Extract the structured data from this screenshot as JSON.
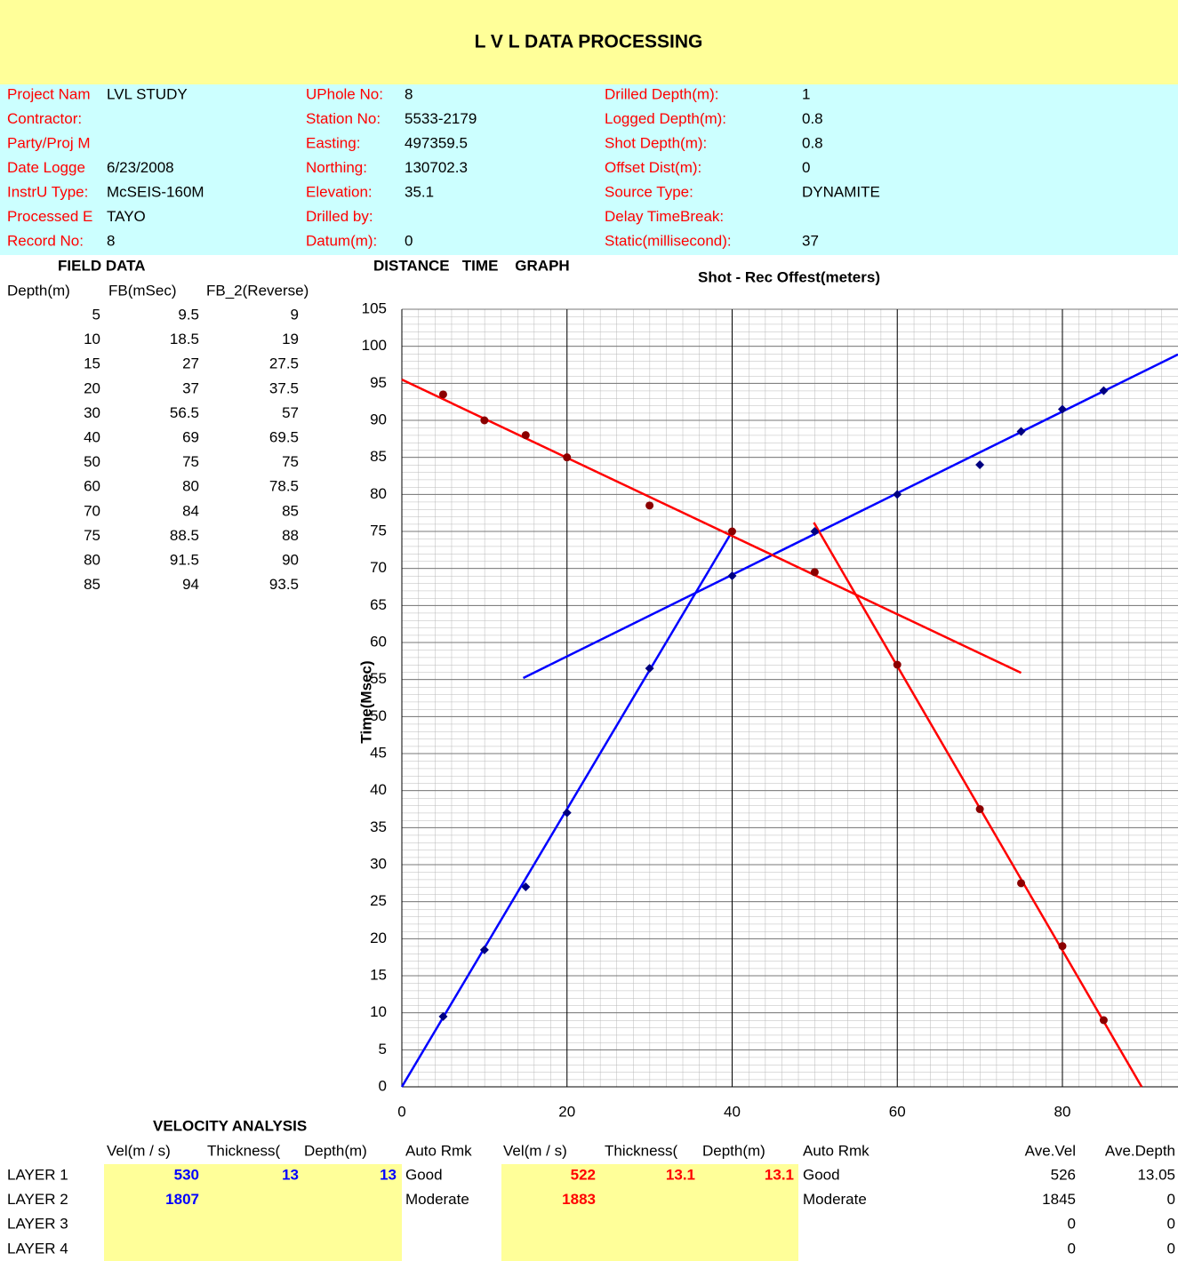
{
  "header": {
    "title": "L V L DATA PROCESSING"
  },
  "info": [
    [
      {
        "label": "Project Nam",
        "value": "LVL STUDY"
      },
      {
        "label": "Contractor:"
      },
      {
        "label": "Party/Proj M"
      },
      {
        "label": "Date Logge",
        "value": "6/23/2008"
      },
      {
        "label": "InstrU Type:",
        "value": "McSEIS-160M"
      },
      {
        "label": "Processed E",
        "value": "TAYO"
      },
      {
        "label": "Record No:",
        "value": "8"
      }
    ],
    [
      {
        "label": "UPhole No:",
        "value": "8"
      },
      {
        "label": "Station No:",
        "value": "5533-2179"
      },
      {
        "label": "Easting:",
        "value": "497359.5"
      },
      {
        "label": "Northing:",
        "value": "130702.3"
      },
      {
        "label": "Elevation:",
        "value": "35.1"
      },
      {
        "label": "Drilled by:"
      },
      {
        "label": "Datum(m):",
        "value": "0"
      }
    ],
    [
      {
        "label": "Drilled Depth(m):",
        "value": "1"
      },
      {
        "label": "Logged Depth(m):",
        "value": "0.8"
      },
      {
        "label": "Shot Depth(m):",
        "value": "0.8"
      },
      {
        "label": "Offset Dist(m):",
        "value": "0"
      },
      {
        "label": "Source Type:",
        "value": "DYNAMITE"
      },
      {
        "label": "Delay TimeBreak:"
      },
      {
        "label": "Static(millisecond):",
        "value": "37"
      }
    ]
  ],
  "field_data": {
    "title": "FIELD DATA",
    "columns": [
      "Depth(m)",
      "FB(mSec)",
      "FB_2(Reverse)"
    ],
    "rows": [
      [
        5,
        9.5,
        9
      ],
      [
        10,
        18.5,
        19
      ],
      [
        15,
        27,
        27.5
      ],
      [
        20,
        37,
        37.5
      ],
      [
        30,
        56.5,
        57
      ],
      [
        40,
        69,
        69.5
      ],
      [
        50,
        75,
        75
      ],
      [
        60,
        80,
        78.5
      ],
      [
        70,
        84,
        85
      ],
      [
        75,
        88.5,
        88
      ],
      [
        80,
        91.5,
        90
      ],
      [
        85,
        94,
        93.5
      ]
    ]
  },
  "chart_data": {
    "type": "scatter",
    "title": "DISTANCE   TIME    GRAPH",
    "x_label": "Shot - Rec Offest(meters)",
    "y_label": "Time(Msec)",
    "xlim": [
      0,
      94
    ],
    "ylim": [
      0,
      105
    ],
    "xticks": [
      0,
      20,
      40,
      60,
      80
    ],
    "yticks": [
      0,
      5,
      10,
      15,
      20,
      25,
      30,
      35,
      40,
      45,
      50,
      55,
      60,
      65,
      70,
      75,
      80,
      85,
      90,
      95,
      100,
      105
    ],
    "grid": true,
    "series": [
      {
        "marker": "diamond",
        "color": "#000080",
        "x": [
          5,
          10,
          15,
          20,
          30,
          40,
          50,
          60,
          70,
          75,
          80,
          85
        ],
        "values": [
          9.5,
          18.5,
          27,
          37,
          56.5,
          69,
          75,
          80,
          84,
          88.5,
          91.5,
          94
        ]
      },
      {
        "marker": "circle",
        "color": "#8b0000",
        "x": [
          85,
          80,
          75,
          70,
          60,
          50,
          40,
          30,
          20,
          15,
          10,
          5
        ],
        "values": [
          9,
          19,
          27.5,
          37.5,
          57,
          69.5,
          75,
          78.5,
          85,
          88,
          90,
          93.5
        ]
      }
    ],
    "fit_lines": [
      {
        "color": "#0000ff",
        "x": [
          0,
          40
        ],
        "values": [
          0,
          75
        ]
      },
      {
        "color": "#0000ff",
        "x": [
          14.7,
          94
        ],
        "values": [
          55.2,
          98.9
        ]
      },
      {
        "color": "#ff0000",
        "x": [
          0,
          75
        ],
        "values": [
          95.5,
          55.9
        ]
      },
      {
        "color": "#ff0000",
        "x": [
          49.9,
          89.6
        ],
        "values": [
          76.2,
          0
        ]
      }
    ]
  },
  "velocity": {
    "title": "VELOCITY ANALYSIS",
    "columns": [
      "Vel(m / s)",
      "Thickness(",
      "Depth(m)",
      "Auto Rmk",
      "Vel(m / s)",
      "Thickness(",
      "Depth(m)",
      "Auto Rmk",
      "Ave.Vel",
      "Ave.Depth"
    ],
    "rows": [
      {
        "name": "LAYER 1",
        "fwd_vel": 530,
        "fwd_thickness": 13,
        "fwd_depth": 13,
        "fwd_rmk": "Good",
        "rev_vel": 522,
        "rev_thickness": 13.1,
        "rev_depth": 13.1,
        "rev_rmk": "Good",
        "ave_vel": 526,
        "ave_depth": 13.05
      },
      {
        "name": "LAYER 2",
        "fwd_vel": 1807,
        "fwd_rmk": "Moderate",
        "rev_vel": 1883,
        "rev_rmk": "Moderate",
        "ave_vel": 1845,
        "ave_depth": 0
      },
      {
        "name": "LAYER 3",
        "ave_vel": 0,
        "ave_depth": 0
      },
      {
        "name": "LAYER 4",
        "ave_vel": 0,
        "ave_depth": 0
      }
    ]
  }
}
